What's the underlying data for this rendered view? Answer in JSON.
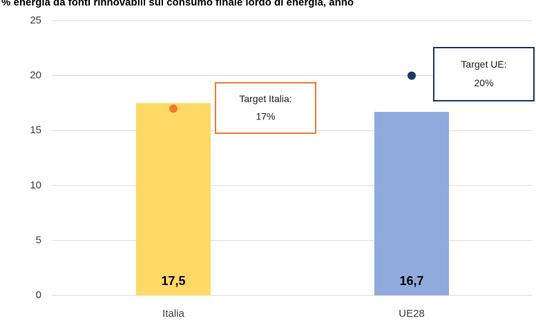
{
  "chart_data": {
    "type": "bar",
    "title": "% energia da fonti rinnovabili sul consumo finale lordo di energia, anno",
    "categories": [
      "Italia",
      "UE28"
    ],
    "series": [
      {
        "values": [
          17.5,
          16.7
        ],
        "value_labels": [
          "17,5",
          "16,7"
        ],
        "colors": [
          "#ffd966",
          "#8faadc"
        ]
      }
    ],
    "targets": {
      "values": [
        17,
        20
      ],
      "labels": [
        "Target Italia:",
        "Target UE:"
      ],
      "value_labels": [
        "17%",
        "20%"
      ],
      "colors": [
        "#ed7d31",
        "#1f3864"
      ]
    },
    "ylim": [
      0,
      25
    ],
    "yticks": [
      0,
      5,
      10,
      15,
      20,
      25
    ],
    "grid": true
  }
}
